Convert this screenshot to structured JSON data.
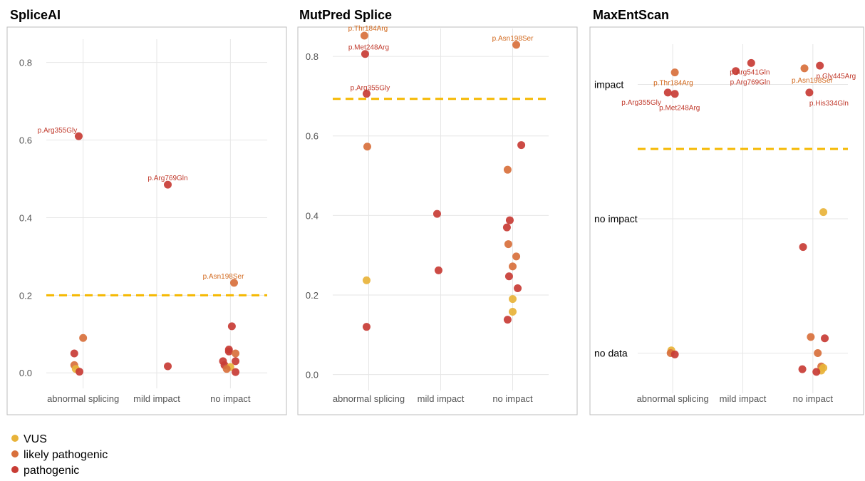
{
  "colors": {
    "VUS": "#E8B33A",
    "likely pathogenic": "#D8703C",
    "pathogenic": "#C83C35",
    "threshold": "#F5B800",
    "grid": "#e6e6e6",
    "frame": "#bdbdbd",
    "label_pathogenic": "#C0392B",
    "label_likely": "#D2691E"
  },
  "legend": [
    {
      "key": "VUS",
      "label": "VUS"
    },
    {
      "key": "likely pathogenic",
      "label": "likely pathogenic"
    },
    {
      "key": "pathogenic",
      "label": "pathogenic"
    }
  ],
  "chart_data": [
    {
      "type": "scatter",
      "title": "SpliceAI",
      "categories": [
        "abnormal splicing",
        "mild impact",
        "no impact"
      ],
      "ylim": [
        -0.04,
        0.86
      ],
      "yticks": [
        0.0,
        0.2,
        0.4,
        0.6,
        0.8
      ],
      "ytick_labels": [
        "0.0",
        "0.2",
        "0.4",
        "0.6",
        "0.8"
      ],
      "threshold": 0.2,
      "grid": true,
      "points": [
        {
          "cat": "abnormal splicing",
          "dx": -0.06,
          "y": 0.61,
          "cls": "pathogenic",
          "label": "p.Arg355Gly",
          "ldx": -30,
          "ldy": -5
        },
        {
          "cat": "abnormal splicing",
          "dx": 0.0,
          "y": 0.09,
          "cls": "likely pathogenic"
        },
        {
          "cat": "abnormal splicing",
          "dx": -0.12,
          "y": 0.05,
          "cls": "pathogenic"
        },
        {
          "cat": "abnormal splicing",
          "dx": -0.12,
          "y": 0.02,
          "cls": "likely pathogenic"
        },
        {
          "cat": "abnormal splicing",
          "dx": -0.1,
          "y": 0.01,
          "cls": "VUS"
        },
        {
          "cat": "abnormal splicing",
          "dx": -0.05,
          "y": 0.003,
          "cls": "pathogenic"
        },
        {
          "cat": "mild impact",
          "dx": 0.15,
          "y": 0.485,
          "cls": "pathogenic",
          "label": "p.Arg769Gln",
          "ldx": 0,
          "ldy": -6
        },
        {
          "cat": "mild impact",
          "dx": 0.15,
          "y": 0.017,
          "cls": "pathogenic"
        },
        {
          "cat": "no impact",
          "dx": 0.05,
          "y": 0.232,
          "cls": "likely pathogenic",
          "label": "p.Asn198Ser",
          "ldx": -15,
          "ldy": -6
        },
        {
          "cat": "no impact",
          "dx": 0.02,
          "y": 0.12,
          "cls": "pathogenic"
        },
        {
          "cat": "no impact",
          "dx": -0.02,
          "y": 0.06,
          "cls": "pathogenic"
        },
        {
          "cat": "no impact",
          "dx": -0.02,
          "y": 0.055,
          "cls": "pathogenic"
        },
        {
          "cat": "no impact",
          "dx": 0.07,
          "y": 0.05,
          "cls": "likely pathogenic"
        },
        {
          "cat": "no impact",
          "dx": -0.1,
          "y": 0.03,
          "cls": "pathogenic"
        },
        {
          "cat": "no impact",
          "dx": 0.07,
          "y": 0.03,
          "cls": "pathogenic"
        },
        {
          "cat": "no impact",
          "dx": -0.08,
          "y": 0.02,
          "cls": "pathogenic"
        },
        {
          "cat": "no impact",
          "dx": 0.0,
          "y": 0.015,
          "cls": "VUS"
        },
        {
          "cat": "no impact",
          "dx": -0.05,
          "y": 0.01,
          "cls": "likely pathogenic"
        },
        {
          "cat": "no impact",
          "dx": 0.07,
          "y": 0.002,
          "cls": "pathogenic"
        }
      ]
    },
    {
      "type": "scatter",
      "title": "MutPred Splice",
      "categories": [
        "abnormal splicing",
        "mild impact",
        "no impact"
      ],
      "ylim": [
        -0.04,
        0.87
      ],
      "yticks": [
        0.0,
        0.2,
        0.4,
        0.6,
        0.8
      ],
      "ytick_labels": [
        "0.0",
        "0.2",
        "0.4",
        "0.6",
        "0.8"
      ],
      "threshold": 0.693,
      "grid": true,
      "points": [
        {
          "cat": "abnormal splicing",
          "dx": -0.06,
          "y": 0.852,
          "cls": "likely pathogenic",
          "label": "p.Thr184Arg",
          "ldx": 5,
          "ldy": -7
        },
        {
          "cat": "abnormal splicing",
          "dx": -0.05,
          "y": 0.806,
          "cls": "pathogenic",
          "label": "p.Met248Arg",
          "ldx": 5,
          "ldy": -6
        },
        {
          "cat": "abnormal splicing",
          "dx": -0.03,
          "y": 0.706,
          "cls": "pathogenic",
          "label": "p.Arg355Gly",
          "ldx": 5,
          "ldy": -5
        },
        {
          "cat": "abnormal splicing",
          "dx": -0.02,
          "y": 0.573,
          "cls": "likely pathogenic"
        },
        {
          "cat": "abnormal splicing",
          "dx": -0.03,
          "y": 0.237,
          "cls": "VUS"
        },
        {
          "cat": "abnormal splicing",
          "dx": -0.03,
          "y": 0.12,
          "cls": "pathogenic"
        },
        {
          "cat": "mild impact",
          "dx": -0.05,
          "y": 0.404,
          "cls": "pathogenic"
        },
        {
          "cat": "mild impact",
          "dx": -0.03,
          "y": 0.262,
          "cls": "pathogenic"
        },
        {
          "cat": "no impact",
          "dx": 0.05,
          "y": 0.829,
          "cls": "likely pathogenic",
          "label": "p.Asn198Ser",
          "ldx": -5,
          "ldy": -6
        },
        {
          "cat": "no impact",
          "dx": 0.12,
          "y": 0.577,
          "cls": "pathogenic"
        },
        {
          "cat": "no impact",
          "dx": -0.07,
          "y": 0.515,
          "cls": "likely pathogenic"
        },
        {
          "cat": "no impact",
          "dx": -0.04,
          "y": 0.388,
          "cls": "pathogenic"
        },
        {
          "cat": "no impact",
          "dx": -0.08,
          "y": 0.37,
          "cls": "pathogenic"
        },
        {
          "cat": "no impact",
          "dx": -0.06,
          "y": 0.328,
          "cls": "likely pathogenic"
        },
        {
          "cat": "no impact",
          "dx": 0.05,
          "y": 0.297,
          "cls": "likely pathogenic"
        },
        {
          "cat": "no impact",
          "dx": 0.0,
          "y": 0.272,
          "cls": "likely pathogenic"
        },
        {
          "cat": "no impact",
          "dx": -0.05,
          "y": 0.247,
          "cls": "pathogenic"
        },
        {
          "cat": "no impact",
          "dx": 0.07,
          "y": 0.217,
          "cls": "pathogenic"
        },
        {
          "cat": "no impact",
          "dx": 0.0,
          "y": 0.19,
          "cls": "VUS"
        },
        {
          "cat": "no impact",
          "dx": 0.0,
          "y": 0.158,
          "cls": "VUS"
        },
        {
          "cat": "no impact",
          "dx": -0.07,
          "y": 0.138,
          "cls": "pathogenic"
        }
      ]
    },
    {
      "type": "scatter",
      "title": "MaxEntScan",
      "categories": [
        "abnormal splicing",
        "mild impact",
        "no impact"
      ],
      "ylim": [
        -0.3,
        2.3
      ],
      "yticks": [
        0,
        1,
        2
      ],
      "ytick_labels": [
        "no data",
        "no impact",
        "impact"
      ],
      "threshold": 1.52,
      "grid": true,
      "points": [
        {
          "cat": "abnormal splicing",
          "dx": 0.03,
          "y": 2.09,
          "cls": "likely pathogenic",
          "label": "p.Thr184Arg",
          "ldx": -30,
          "ldy": 18
        },
        {
          "cat": "abnormal splicing",
          "dx": -0.07,
          "y": 1.94,
          "cls": "pathogenic",
          "label": "p.Arg355Gly",
          "ldx": -65,
          "ldy": 17
        },
        {
          "cat": "abnormal splicing",
          "dx": 0.03,
          "y": 1.93,
          "cls": "pathogenic",
          "label": "p.Met248Arg",
          "ldx": -22,
          "ldy": 23
        },
        {
          "cat": "abnormal splicing",
          "dx": -0.02,
          "y": 0.02,
          "cls": "VUS"
        },
        {
          "cat": "abnormal splicing",
          "dx": -0.03,
          "y": 0.0,
          "cls": "likely pathogenic"
        },
        {
          "cat": "abnormal splicing",
          "dx": 0.03,
          "y": -0.01,
          "cls": "pathogenic"
        },
        {
          "cat": "mild impact",
          "dx": -0.1,
          "y": 2.1,
          "cls": "pathogenic",
          "label": "p.Arg769Gln",
          "ldx": -8,
          "ldy": 19
        },
        {
          "cat": "mild impact",
          "dx": 0.12,
          "y": 2.16,
          "cls": "pathogenic",
          "label": "p.Arg541Gln",
          "ldx": -30,
          "ldy": 16
        },
        {
          "cat": "no impact",
          "dx": -0.12,
          "y": 2.12,
          "cls": "likely pathogenic",
          "label": "p.Asn198Ser",
          "ldx": -18,
          "ldy": 20
        },
        {
          "cat": "no impact",
          "dx": 0.1,
          "y": 2.14,
          "cls": "pathogenic",
          "label": "p.Gly445Arg",
          "ldx": -5,
          "ldy": 18
        },
        {
          "cat": "no impact",
          "dx": -0.05,
          "y": 1.94,
          "cls": "pathogenic",
          "label": "p.His334Gln",
          "ldx": 0,
          "ldy": 18
        },
        {
          "cat": "no impact",
          "dx": 0.15,
          "y": 1.05,
          "cls": "VUS"
        },
        {
          "cat": "no impact",
          "dx": -0.14,
          "y": 0.79,
          "cls": "pathogenic"
        },
        {
          "cat": "no impact",
          "dx": -0.03,
          "y": 0.12,
          "cls": "likely pathogenic"
        },
        {
          "cat": "no impact",
          "dx": 0.17,
          "y": 0.11,
          "cls": "pathogenic"
        },
        {
          "cat": "no impact",
          "dx": 0.07,
          "y": 0.0,
          "cls": "likely pathogenic"
        },
        {
          "cat": "no impact",
          "dx": 0.12,
          "y": -0.1,
          "cls": "likely pathogenic"
        },
        {
          "cat": "no impact",
          "dx": 0.15,
          "y": -0.11,
          "cls": "VUS"
        },
        {
          "cat": "no impact",
          "dx": 0.12,
          "y": -0.13,
          "cls": "VUS"
        },
        {
          "cat": "no impact",
          "dx": -0.15,
          "y": -0.12,
          "cls": "pathogenic"
        },
        {
          "cat": "no impact",
          "dx": 0.05,
          "y": -0.14,
          "cls": "pathogenic"
        }
      ]
    }
  ]
}
